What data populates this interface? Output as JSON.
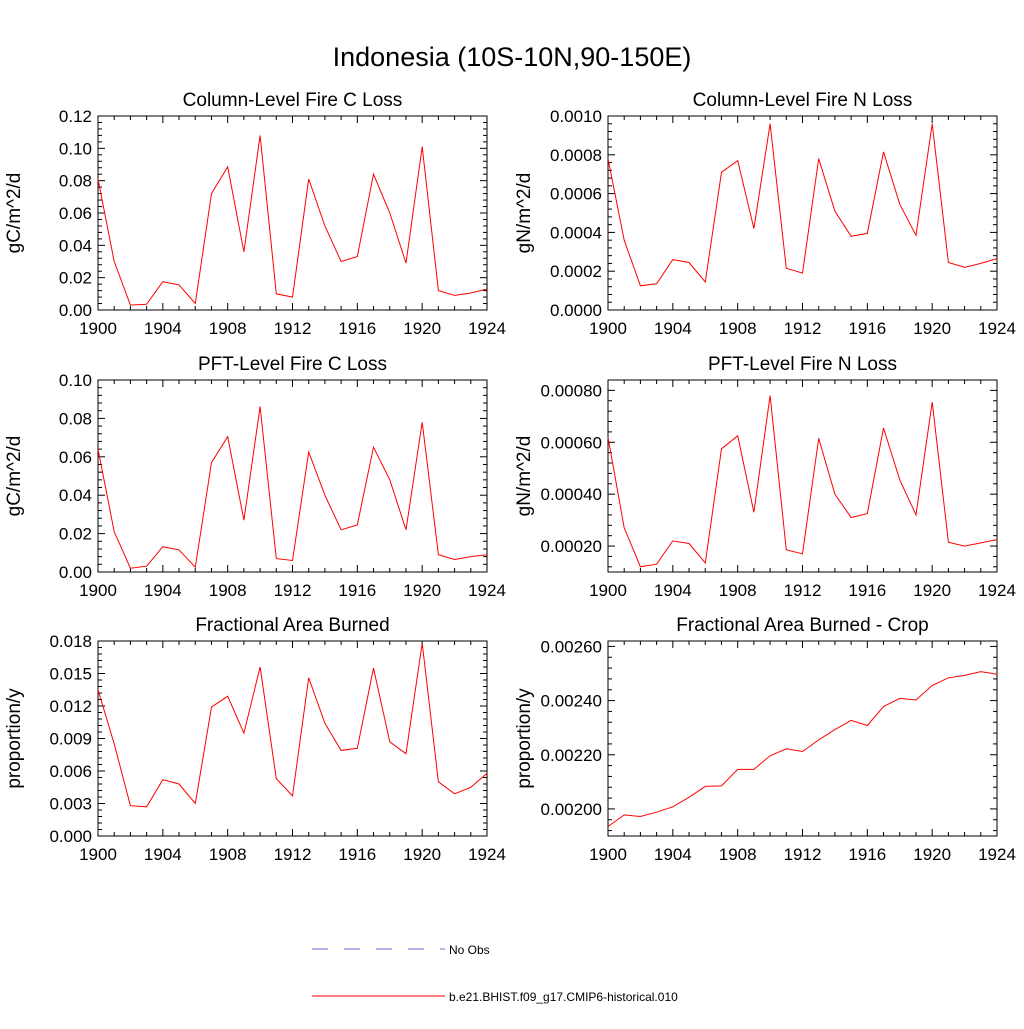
{
  "figure": {
    "title": "Indonesia (10S-10N,90-150E)"
  },
  "colors": {
    "series": "#ff0000",
    "obs": "#6a6ad0",
    "axis": "#000000",
    "background": "#ffffff"
  },
  "legend": [
    {
      "label": "No Obs",
      "style": "dashed",
      "color": "#6a6ad0"
    },
    {
      "label": "b.e21.BHIST.f09_g17.CMIP6-historical.010",
      "style": "solid",
      "color": "#ff0000"
    }
  ],
  "chart_data": [
    {
      "type": "line",
      "title": "Column-Level Fire C Loss",
      "ylabel": "gC/m^2/d",
      "xlim": [
        1900,
        1924
      ],
      "ylim": [
        0,
        0.12
      ],
      "xticks": [
        1900,
        1904,
        1908,
        1912,
        1916,
        1920,
        1924
      ],
      "yticks": [
        0,
        0.02,
        0.04,
        0.06,
        0.08,
        0.1,
        0.12
      ],
      "ytick_labels": [
        "0.00",
        "0.02",
        "0.04",
        "0.06",
        "0.08",
        "0.10",
        "0.12"
      ],
      "x": [
        1900,
        1901,
        1902,
        1903,
        1904,
        1905,
        1906,
        1907,
        1908,
        1909,
        1910,
        1911,
        1912,
        1913,
        1914,
        1915,
        1916,
        1917,
        1918,
        1919,
        1920,
        1921,
        1922,
        1923,
        1924
      ],
      "series": [
        {
          "name": "b.e21.BHIST.f09_g17.CMIP6-historical.010",
          "values": [
            0.081,
            0.03,
            0.003,
            0.0035,
            0.0175,
            0.0155,
            0.004,
            0.072,
            0.0885,
            0.036,
            0.108,
            0.01,
            0.008,
            0.081,
            0.052,
            0.03,
            0.033,
            0.084,
            0.06,
            0.029,
            0.101,
            0.012,
            0.009,
            0.0105,
            0.013
          ]
        }
      ]
    },
    {
      "type": "line",
      "title": "Column-Level Fire N Loss",
      "ylabel": "gN/m^2/d",
      "xlim": [
        1900,
        1924
      ],
      "ylim": [
        0,
        0.001
      ],
      "xticks": [
        1900,
        1904,
        1908,
        1912,
        1916,
        1920,
        1924
      ],
      "yticks": [
        0,
        0.0002,
        0.0004,
        0.0006,
        0.0008,
        0.001
      ],
      "ytick_labels": [
        "0.0000",
        "0.0002",
        "0.0004",
        "0.0006",
        "0.0008",
        "0.0010"
      ],
      "x": [
        1900,
        1901,
        1902,
        1903,
        1904,
        1905,
        1906,
        1907,
        1908,
        1909,
        1910,
        1911,
        1912,
        1913,
        1914,
        1915,
        1916,
        1917,
        1918,
        1919,
        1920,
        1921,
        1922,
        1923,
        1924
      ],
      "series": [
        {
          "name": "b.e21.BHIST.f09_g17.CMIP6-historical.010",
          "values": [
            0.00078,
            0.00036,
            0.000125,
            0.000135,
            0.00026,
            0.000245,
            0.000145,
            0.00071,
            0.00077,
            0.00042,
            0.00096,
            0.000215,
            0.00019,
            0.00078,
            0.00051,
            0.00038,
            0.000395,
            0.000815,
            0.000545,
            0.000385,
            0.00096,
            0.000245,
            0.00022,
            0.00024,
            0.000265
          ]
        }
      ]
    },
    {
      "type": "line",
      "title": "PFT-Level Fire C Loss",
      "ylabel": "gC/m^2/d",
      "xlim": [
        1900,
        1924
      ],
      "ylim": [
        0,
        0.1
      ],
      "xticks": [
        1900,
        1904,
        1908,
        1912,
        1916,
        1920,
        1924
      ],
      "yticks": [
        0,
        0.02,
        0.04,
        0.06,
        0.08,
        0.1
      ],
      "ytick_labels": [
        "0.00",
        "0.02",
        "0.04",
        "0.06",
        "0.08",
        "0.10"
      ],
      "x": [
        1900,
        1901,
        1902,
        1903,
        1904,
        1905,
        1906,
        1907,
        1908,
        1909,
        1910,
        1911,
        1912,
        1913,
        1914,
        1915,
        1916,
        1917,
        1918,
        1919,
        1920,
        1921,
        1922,
        1923,
        1924
      ],
      "series": [
        {
          "name": "b.e21.BHIST.f09_g17.CMIP6-historical.010",
          "values": [
            0.064,
            0.021,
            0.002,
            0.003,
            0.0132,
            0.0115,
            0.0025,
            0.057,
            0.0705,
            0.027,
            0.0862,
            0.007,
            0.006,
            0.0625,
            0.04,
            0.022,
            0.0245,
            0.065,
            0.048,
            0.022,
            0.078,
            0.009,
            0.0065,
            0.008,
            0.009
          ]
        }
      ]
    },
    {
      "type": "line",
      "title": "PFT-Level Fire N Loss",
      "ylabel": "gN/m^2/d",
      "xlim": [
        1900,
        1924
      ],
      "ylim": [
        0.0001,
        0.00084
      ],
      "xticks": [
        1900,
        1904,
        1908,
        1912,
        1916,
        1920,
        1924
      ],
      "yticks": [
        0.0002,
        0.0004,
        0.0006,
        0.0008
      ],
      "ytick_labels": [
        "0.00020",
        "0.00040",
        "0.00060",
        "0.00080"
      ],
      "x": [
        1900,
        1901,
        1902,
        1903,
        1904,
        1905,
        1906,
        1907,
        1908,
        1909,
        1910,
        1911,
        1912,
        1913,
        1914,
        1915,
        1916,
        1917,
        1918,
        1919,
        1920,
        1921,
        1922,
        1923,
        1924
      ],
      "series": [
        {
          "name": "b.e21.BHIST.f09_g17.CMIP6-historical.010",
          "values": [
            0.00062,
            0.00027,
            0.00012,
            0.00013,
            0.00022,
            0.00021,
            0.000135,
            0.000575,
            0.000625,
            0.00033,
            0.00078,
            0.000185,
            0.00017,
            0.000615,
            0.0004,
            0.00031,
            0.000325,
            0.000655,
            0.000455,
            0.00032,
            0.000755,
            0.000215,
            0.0002,
            0.000212,
            0.000225
          ]
        }
      ]
    },
    {
      "type": "line",
      "title": "Fractional Area Burned",
      "ylabel": "proportion/y",
      "xlim": [
        1900,
        1924
      ],
      "ylim": [
        0,
        0.018
      ],
      "xticks": [
        1900,
        1904,
        1908,
        1912,
        1916,
        1920,
        1924
      ],
      "yticks": [
        0,
        0.003,
        0.006,
        0.009,
        0.012,
        0.015,
        0.018
      ],
      "ytick_labels": [
        "0.000",
        "0.003",
        "0.006",
        "0.009",
        "0.012",
        "0.015",
        "0.018"
      ],
      "x": [
        1900,
        1901,
        1902,
        1903,
        1904,
        1905,
        1906,
        1907,
        1908,
        1909,
        1910,
        1911,
        1912,
        1913,
        1914,
        1915,
        1916,
        1917,
        1918,
        1919,
        1920,
        1921,
        1922,
        1923,
        1924
      ],
      "series": [
        {
          "name": "b.e21.BHIST.f09_g17.CMIP6-historical.010",
          "values": [
            0.0135,
            0.0085,
            0.0028,
            0.0027,
            0.0052,
            0.0048,
            0.003,
            0.0119,
            0.0129,
            0.0095,
            0.0156,
            0.0053,
            0.0037,
            0.0146,
            0.0104,
            0.0079,
            0.0081,
            0.0155,
            0.0087,
            0.0076,
            0.0178,
            0.005,
            0.0039,
            0.0045,
            0.0058
          ]
        }
      ]
    },
    {
      "type": "line",
      "title": "Fractional Area Burned - Crop",
      "ylabel": "proportion/y",
      "xlim": [
        1900,
        1924
      ],
      "ylim": [
        0.0019,
        0.00262
      ],
      "xticks": [
        1900,
        1904,
        1908,
        1912,
        1916,
        1920,
        1924
      ],
      "yticks": [
        0.002,
        0.0022,
        0.0024,
        0.0026
      ],
      "ytick_labels": [
        "0.00200",
        "0.00220",
        "0.00240",
        "0.00260"
      ],
      "x": [
        1900,
        1901,
        1902,
        1903,
        1904,
        1905,
        1906,
        1907,
        1908,
        1909,
        1910,
        1911,
        1912,
        1913,
        1914,
        1915,
        1916,
        1917,
        1918,
        1919,
        1920,
        1921,
        1922,
        1923,
        1924
      ],
      "series": [
        {
          "name": "b.e21.BHIST.f09_g17.CMIP6-historical.010",
          "values": [
            0.001935,
            0.001978,
            0.001972,
            0.001988,
            0.002008,
            0.002043,
            0.002083,
            0.002085,
            0.002146,
            0.002146,
            0.002196,
            0.002222,
            0.002212,
            0.002255,
            0.002293,
            0.002327,
            0.002308,
            0.002378,
            0.002408,
            0.002402,
            0.002456,
            0.002484,
            0.002493,
            0.002507,
            0.002497
          ]
        }
      ]
    }
  ]
}
